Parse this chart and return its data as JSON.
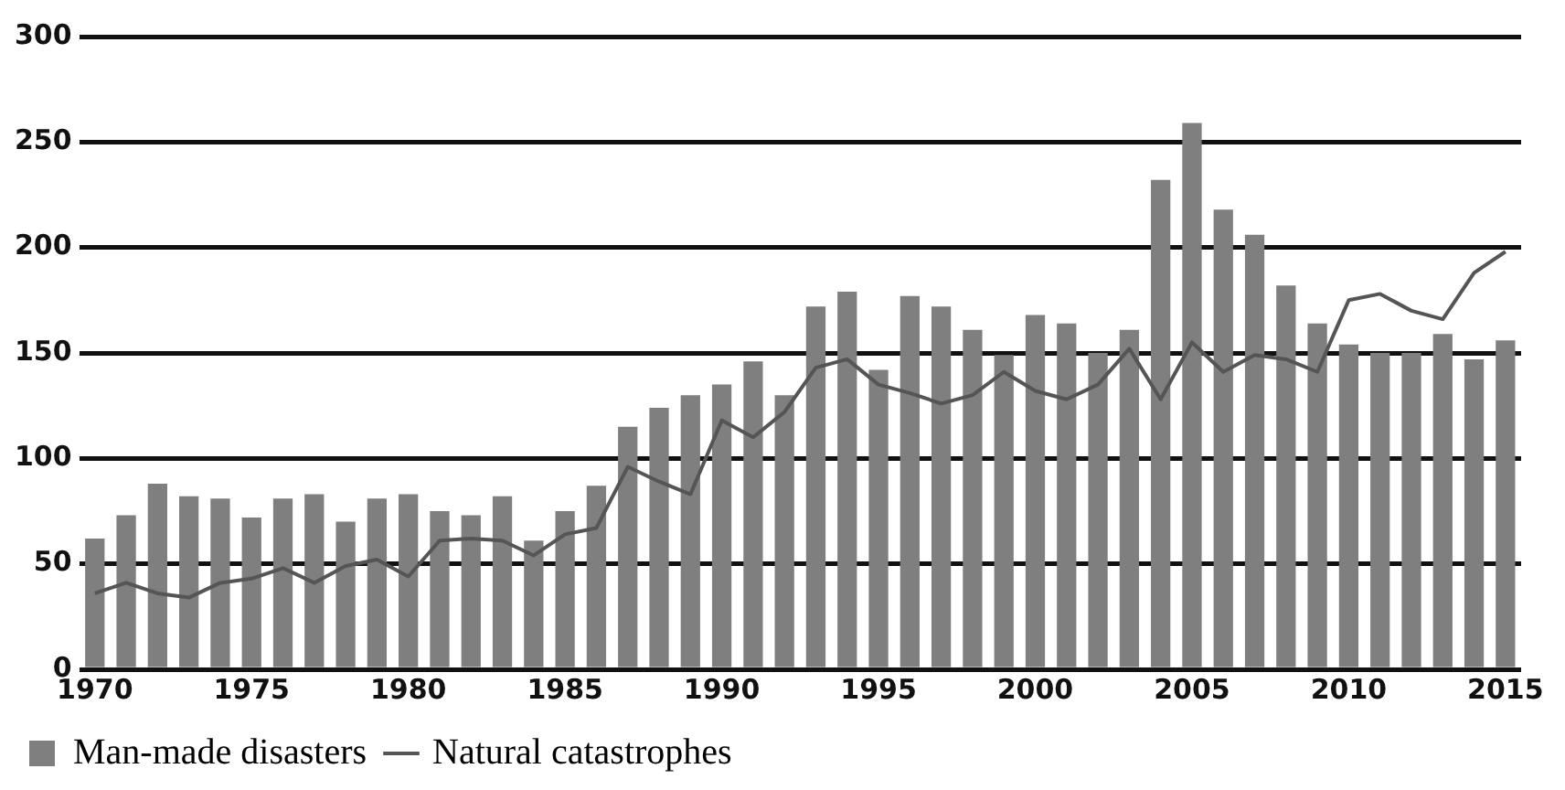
{
  "chart_data": {
    "type": "bar",
    "categories": [
      "1970",
      null,
      null,
      null,
      null,
      "1975",
      null,
      null,
      null,
      null,
      "1980",
      null,
      null,
      null,
      null,
      "1985",
      null,
      null,
      null,
      null,
      "1990",
      null,
      null,
      null,
      null,
      "1995",
      null,
      null,
      null,
      null,
      "2000",
      null,
      null,
      null,
      null,
      "2005",
      null,
      null,
      null,
      null,
      "2010",
      null,
      null,
      null,
      null,
      "2015"
    ],
    "series": [
      {
        "name": "Man-made disasters",
        "color": "#7f7f7f",
        "values": [
          62,
          73,
          88,
          82,
          81,
          72,
          81,
          83,
          70,
          81,
          83,
          75,
          73,
          82,
          61,
          75,
          87,
          115,
          124,
          130,
          135,
          146,
          130,
          172,
          179,
          142,
          177,
          172,
          161,
          149,
          168,
          164,
          150,
          161,
          232,
          259,
          218,
          206,
          182,
          164,
          154,
          150,
          150,
          159,
          147,
          156
        ]
      },
      {
        "name": "Natural catastrophes",
        "type": "line",
        "color": "#555555",
        "values": [
          36,
          41,
          36,
          34,
          41,
          43,
          48,
          41,
          49,
          52,
          44,
          61,
          62,
          61,
          54,
          64,
          67,
          96,
          89,
          83,
          118,
          110,
          122,
          143,
          147,
          135,
          131,
          126,
          130,
          141,
          132,
          128,
          135,
          152,
          128,
          155,
          141,
          149,
          147,
          141,
          175,
          178,
          170,
          166,
          188,
          198
        ]
      }
    ],
    "ylim": [
      0,
      300
    ],
    "yticks": [
      0,
      50,
      100,
      150,
      200,
      250,
      300
    ],
    "grid": "y",
    "legend": "bottom",
    "marker": "none"
  }
}
